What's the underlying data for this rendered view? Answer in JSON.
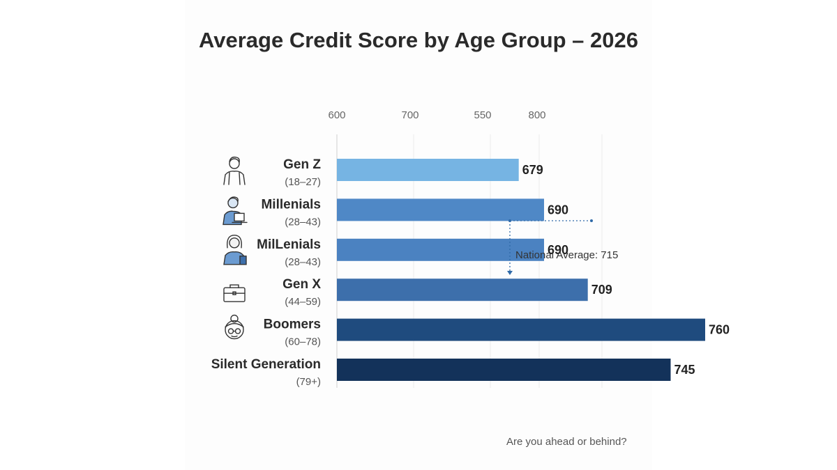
{
  "title": "Average Credit Score by Age Group – 2026",
  "footer_text": "Are you ahead or behind?",
  "chart_data": {
    "type": "bar",
    "orientation": "horizontal",
    "title": "Average Credit Score by Age Group – 2026",
    "xlabel": "",
    "ylabel": "",
    "grid": true,
    "tick_labels": [
      "600",
      "700",
      "550",
      "800"
    ],
    "categories": [
      {
        "name": "Gen Z",
        "range": "(18–27)",
        "icon": "young-person-icon"
      },
      {
        "name": "Millenials",
        "range": "(28–43)",
        "icon": "person-laptop-icon"
      },
      {
        "name": "MilLenials",
        "range": "(28–43)",
        "icon": "woman-phone-icon"
      },
      {
        "name": "Gen X",
        "range": "(44–59)",
        "icon": "briefcase-icon"
      },
      {
        "name": "Boomers",
        "range": "(60–78)",
        "icon": "grandmother-icon"
      },
      {
        "name": "Silent Generation",
        "range": "(79+)",
        "icon": ""
      }
    ],
    "values": [
      679,
      690,
      690,
      709,
      760,
      745
    ],
    "value_labels": [
      "679",
      "690",
      "690",
      "709",
      "760",
      "745"
    ],
    "bar_colors": [
      "#76b4e3",
      "#4f88c6",
      "#4b82c1",
      "#3d6fab",
      "#1f4b7e",
      "#13325a"
    ],
    "annotation": {
      "text": "National Average: 715",
      "color": "#2f6aa8"
    }
  }
}
